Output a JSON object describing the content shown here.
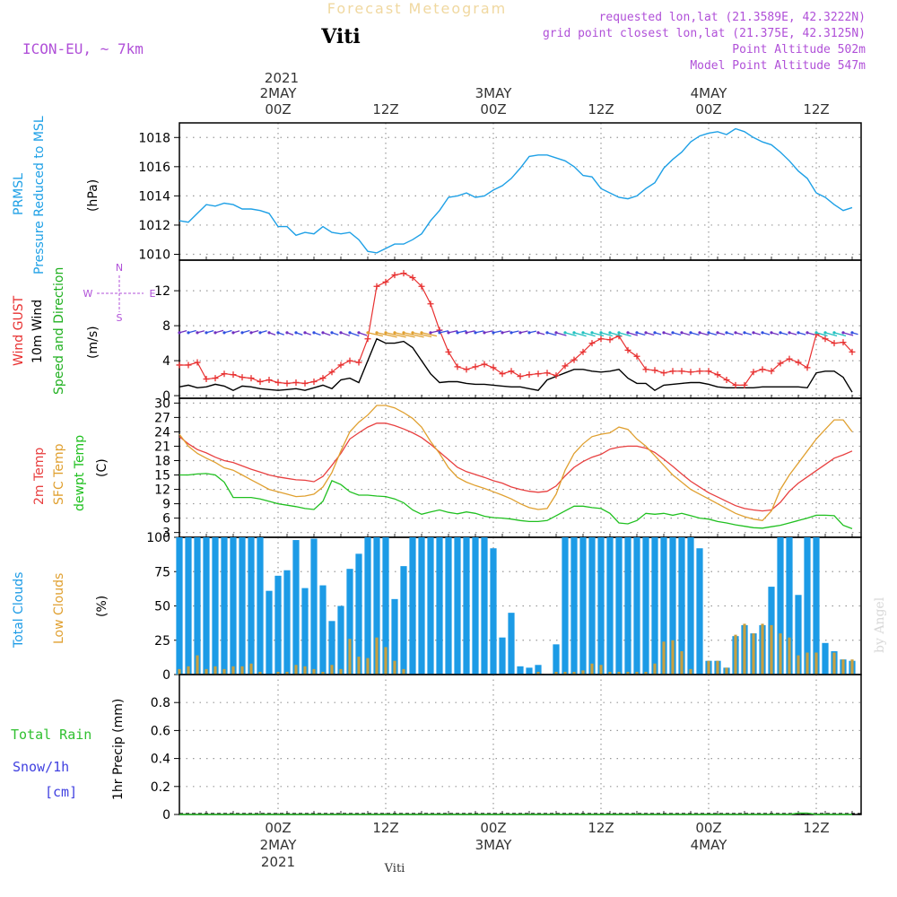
{
  "header": {
    "title": "Forecast Meteogram",
    "location": "Viti",
    "model": "ICON-EU, ~ 7km",
    "requested": "requested lon,lat (21.3589E, 42.3222N)",
    "grid_point": "grid point closest lon,lat (21.375E, 42.3125N)",
    "point_altitude": "Point Altitude 502m",
    "model_altitude": "Model Point Altitude 547m",
    "credit": "by Angel",
    "footer_location": "Viti"
  },
  "time_axis": {
    "top_year": "2021",
    "bottom_year": "2021",
    "ticks": [
      {
        "hour": 0,
        "time": "00Z",
        "date": "2MAY"
      },
      {
        "hour": 12,
        "time": "12Z",
        "date": ""
      },
      {
        "hour": 24,
        "time": "00Z",
        "date": "3MAY"
      },
      {
        "hour": 36,
        "time": "12Z",
        "date": ""
      },
      {
        "hour": 48,
        "time": "00Z",
        "date": "4MAY"
      },
      {
        "hour": 60,
        "time": "12Z",
        "date": ""
      }
    ]
  },
  "colors": {
    "pressure": "#1ea0e6",
    "gust": "#e83030",
    "wind": "#000000",
    "temp2m": "#e84040",
    "sfctemp": "#e0a030",
    "dewpt": "#20c020",
    "total_clouds": "#1c9be6",
    "low_clouds": "#c8a040",
    "rain": "#30c030",
    "snow": "#4040e0",
    "meta": "#b050d8"
  },
  "chart_data": [
    {
      "type": "line",
      "panel": "pressure",
      "labels": {
        "name": "PRMSL",
        "name2": "Pressure Reduced to MSL",
        "unit": "(hPa)"
      },
      "ylim": [
        1009.6,
        1019.0
      ],
      "yticks": [
        1010,
        1012,
        1014,
        1016,
        1018
      ],
      "x_hours_start": -11,
      "x_step": 1,
      "values": [
        1012.3,
        1012.2,
        1012.8,
        1013.4,
        1013.3,
        1013.5,
        1013.4,
        1013.1,
        1013.1,
        1013.0,
        1012.8,
        1011.9,
        1011.9,
        1011.3,
        1011.5,
        1011.4,
        1011.9,
        1011.5,
        1011.4,
        1011.5,
        1011.0,
        1010.2,
        1010.1,
        1010.4,
        1010.7,
        1010.7,
        1011.0,
        1011.4,
        1012.3,
        1013.0,
        1013.9,
        1014.0,
        1014.2,
        1013.9,
        1014.0,
        1014.4,
        1014.7,
        1015.2,
        1015.9,
        1016.7,
        1016.8,
        1016.8,
        1016.6,
        1016.4,
        1016.0,
        1015.4,
        1015.3,
        1014.5,
        1014.2,
        1013.9,
        1013.8,
        1014.0,
        1014.5,
        1014.9,
        1015.9,
        1016.5,
        1017.0,
        1017.7,
        1018.1,
        1018.3,
        1018.4,
        1018.2,
        1018.6,
        1018.4,
        1018.0,
        1017.7,
        1017.5,
        1017.0,
        1016.4,
        1015.7,
        1015.2,
        1014.2,
        1013.9,
        1013.4,
        1013.0,
        1013.2
      ]
    },
    {
      "type": "line",
      "panel": "wind",
      "labels": {
        "gust": "Wind GUST",
        "wind": "10m Wind",
        "dir": "Speed and Direction",
        "unit": "(m/s)",
        "compass_n": "N",
        "compass_s": "S",
        "compass_w": "W",
        "compass_e": "E"
      },
      "ylim": [
        -0.3,
        15.5
      ],
      "yticks": [
        0,
        4,
        8,
        12
      ],
      "x_hours_start": -11,
      "x_step": 1,
      "series": [
        {
          "name": "Wind GUST",
          "values": [
            3.5,
            3.5,
            3.8,
            1.9,
            2.0,
            2.5,
            2.4,
            2.1,
            2.0,
            1.6,
            1.8,
            1.5,
            1.4,
            1.5,
            1.4,
            1.6,
            2.0,
            2.7,
            3.5,
            4.0,
            3.8,
            6.5,
            12.5,
            13.0,
            13.8,
            14.0,
            13.5,
            12.5,
            10.5,
            7.5,
            5.0,
            3.3,
            3.0,
            3.3,
            3.6,
            3.2,
            2.5,
            2.8,
            2.2,
            2.4,
            2.5,
            2.6,
            2.3,
            3.4,
            4.1,
            5.0,
            6.0,
            6.5,
            6.4,
            6.8,
            5.2,
            4.5,
            3.0,
            2.9,
            2.6,
            2.8,
            2.8,
            2.7,
            2.8,
            2.8,
            2.4,
            1.8,
            1.2,
            1.2,
            2.7,
            3.0,
            2.8,
            3.7,
            4.2,
            3.8,
            3.2,
            7.0,
            6.5,
            6.0,
            6.1,
            5.0
          ]
        },
        {
          "name": "10m Wind",
          "values": [
            1.0,
            1.2,
            0.9,
            1.0,
            1.3,
            1.1,
            0.6,
            1.1,
            1.0,
            0.8,
            0.7,
            0.6,
            0.7,
            0.8,
            0.6,
            0.9,
            1.2,
            0.8,
            1.8,
            2.0,
            1.5,
            4.0,
            6.5,
            6.0,
            6.0,
            6.2,
            5.5,
            4.0,
            2.5,
            1.5,
            1.6,
            1.6,
            1.4,
            1.3,
            1.3,
            1.2,
            1.1,
            1.0,
            1.0,
            0.8,
            0.6,
            1.8,
            2.2,
            2.6,
            3.0,
            3.0,
            2.8,
            2.7,
            2.8,
            3.0,
            2.0,
            1.4,
            1.4,
            0.6,
            1.2,
            1.3,
            1.4,
            1.5,
            1.5,
            1.3,
            1.0,
            0.9,
            0.9,
            0.9,
            0.9,
            1.0,
            1.0,
            1.0,
            1.0,
            1.0,
            0.9,
            2.6,
            2.8,
            2.8,
            2.1,
            0.4
          ]
        }
      ]
    },
    {
      "type": "line",
      "panel": "temperature",
      "labels": {
        "t2m": "2m Temp",
        "sfc": "SFC Temp",
        "dew": "dewpt Temp",
        "unit": "(C)"
      },
      "ylim": [
        2.0,
        31.0
      ],
      "yticks": [
        3,
        6,
        9,
        12,
        15,
        18,
        21,
        24,
        27,
        30
      ],
      "x_hours_start": -11,
      "x_step": 1,
      "series": [
        {
          "name": "2m Temp",
          "values": [
            23.0,
            21.5,
            20.3,
            19.6,
            18.7,
            18.0,
            17.6,
            16.9,
            16.2,
            15.6,
            15.0,
            14.6,
            14.3,
            14.0,
            13.9,
            13.6,
            14.7,
            17.0,
            19.5,
            22.5,
            23.8,
            25.0,
            25.8,
            25.8,
            25.3,
            24.6,
            23.8,
            22.8,
            21.4,
            19.8,
            18.2,
            16.6,
            15.7,
            15.1,
            14.5,
            13.8,
            13.3,
            12.5,
            12.0,
            11.6,
            11.4,
            11.6,
            12.7,
            14.8,
            16.6,
            17.8,
            18.7,
            19.3,
            20.4,
            20.8,
            21.0,
            21.0,
            20.6,
            19.7,
            18.3,
            16.8,
            15.2,
            13.7,
            12.5,
            11.3,
            10.4,
            9.5,
            8.6,
            8.0,
            7.7,
            7.5,
            7.7,
            9.3,
            11.6,
            13.3,
            14.6,
            15.9,
            17.2,
            18.5,
            19.2,
            20.0
          ]
        },
        {
          "name": "SFC Temp",
          "values": [
            23.5,
            21.0,
            19.5,
            18.5,
            17.6,
            16.5,
            16.0,
            15.0,
            14.0,
            13.0,
            12.0,
            11.5,
            11.0,
            10.5,
            10.6,
            11.0,
            12.5,
            15.5,
            20.0,
            24.0,
            26.0,
            27.5,
            29.5,
            29.5,
            29.0,
            28.0,
            26.8,
            25.0,
            22.0,
            19.5,
            16.5,
            14.5,
            13.5,
            12.8,
            12.2,
            11.5,
            10.8,
            10.0,
            9.0,
            8.2,
            7.8,
            8.0,
            11.0,
            16.0,
            19.5,
            21.5,
            23.0,
            23.5,
            23.8,
            25.0,
            24.5,
            22.5,
            21.0,
            19.0,
            17.0,
            15.0,
            13.5,
            12.0,
            11.0,
            10.0,
            9.0,
            8.0,
            7.0,
            6.3,
            5.8,
            5.5,
            7.5,
            12.0,
            15.0,
            17.5,
            20.0,
            22.5,
            24.5,
            26.5,
            26.5,
            24.0
          ]
        },
        {
          "name": "dewpt Temp",
          "values": [
            15.0,
            15.0,
            15.2,
            15.3,
            15.0,
            13.5,
            10.3,
            10.3,
            10.3,
            10.0,
            9.5,
            9.0,
            8.7,
            8.4,
            8.0,
            7.8,
            9.5,
            13.8,
            13.0,
            11.5,
            10.8,
            10.8,
            10.6,
            10.5,
            10.0,
            9.2,
            7.7,
            6.8,
            7.3,
            7.7,
            7.2,
            6.9,
            7.3,
            7.0,
            6.4,
            6.1,
            6.0,
            5.8,
            5.5,
            5.3,
            5.3,
            5.5,
            6.5,
            7.5,
            8.5,
            8.5,
            8.2,
            8.0,
            7.0,
            5.0,
            4.8,
            5.5,
            7.0,
            6.8,
            7.0,
            6.6,
            7.0,
            6.5,
            6.0,
            5.8,
            5.3,
            5.0,
            4.6,
            4.3,
            4.0,
            3.9,
            4.2,
            4.5,
            5.0,
            5.5,
            6.0,
            6.6,
            6.6,
            6.5,
            4.5,
            3.8
          ]
        }
      ]
    },
    {
      "type": "bar",
      "panel": "clouds",
      "labels": {
        "total": "Total Clouds",
        "low": "Low Clouds",
        "unit": "(%)"
      },
      "ylim": [
        0,
        100
      ],
      "yticks": [
        0,
        25,
        50,
        75,
        100
      ],
      "x_hours_start": -11,
      "x_step": 1,
      "series": [
        {
          "name": "Total Clouds",
          "values": [
            100,
            100,
            100,
            100,
            100,
            100,
            100,
            100,
            100,
            100,
            61,
            72,
            76,
            98,
            63,
            99,
            65,
            39,
            50,
            77,
            88,
            100,
            100,
            100,
            55,
            79,
            100,
            100,
            100,
            100,
            100,
            100,
            100,
            100,
            100,
            92,
            27,
            45,
            6,
            5,
            7,
            0,
            22,
            100,
            100,
            100,
            100,
            100,
            100,
            100,
            100,
            100,
            100,
            100,
            100,
            100,
            100,
            100,
            92,
            10,
            10,
            5,
            28,
            36,
            30,
            36,
            64,
            100,
            100,
            58,
            100,
            100,
            23,
            17,
            11,
            10
          ]
        },
        {
          "name": "Low Clouds",
          "values": [
            4,
            6,
            14,
            4,
            6,
            4,
            6,
            6,
            8,
            2,
            0,
            2,
            2,
            7,
            6,
            4,
            2,
            7,
            4,
            26,
            13,
            12,
            27,
            20,
            10,
            4,
            0,
            0,
            0,
            0,
            0,
            0,
            0,
            0,
            0,
            0,
            0,
            0,
            0,
            0,
            2,
            0,
            2,
            2,
            2,
            3,
            8,
            7,
            2,
            2,
            2,
            2,
            2,
            8,
            24,
            25,
            17,
            4,
            0,
            10,
            10,
            5,
            29,
            37,
            30,
            37,
            36,
            30,
            27,
            14,
            16,
            16,
            0,
            16,
            11,
            11
          ]
        }
      ]
    },
    {
      "type": "line",
      "panel": "precipitation",
      "labels": {
        "total_rain": "Total Rain",
        "snow": "Snow/1h",
        "snow_unit": "[cm]",
        "unit": "1hr Precip (mm)"
      },
      "ylim": [
        0,
        1.0
      ],
      "yticks": [
        0,
        0.2,
        0.4,
        0.6,
        0.8
      ],
      "x_hours_start": -11,
      "x_step": 1,
      "series": [
        {
          "name": "Total Rain",
          "values": [
            0,
            0,
            0,
            0,
            0,
            0,
            0,
            0,
            0,
            0,
            0,
            0,
            0,
            0,
            0,
            0,
            0,
            0,
            0,
            0,
            0,
            0,
            0,
            0,
            0,
            0,
            0,
            0,
            0,
            0,
            0,
            0,
            0,
            0,
            0,
            0,
            0,
            0,
            0,
            0,
            0,
            0,
            0,
            0,
            0,
            0,
            0,
            0,
            0,
            0,
            0,
            0,
            0,
            0,
            0,
            0,
            0,
            0,
            0,
            0,
            0,
            0,
            0,
            0,
            0,
            0,
            0,
            0,
            0,
            0.01,
            0.01,
            0,
            0,
            0,
            0,
            0
          ]
        }
      ]
    }
  ]
}
